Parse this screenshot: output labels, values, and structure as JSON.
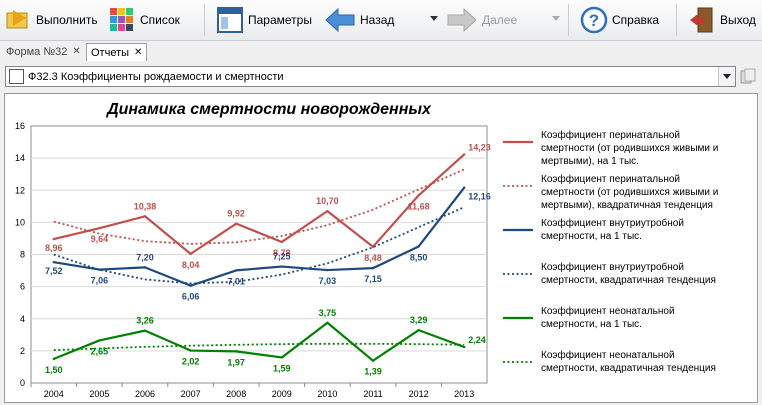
{
  "toolbar": {
    "run_label": "Выполнить",
    "list_label": "Список",
    "params_label": "Параметры",
    "back_label": "Назад",
    "next_label": "Далее",
    "help_label": "Справка",
    "exit_label": "Выход"
  },
  "tabs": [
    {
      "label": "Форма №32",
      "active": false
    },
    {
      "label": "Отчеты",
      "active": true
    }
  ],
  "report_selector": {
    "value": "Ф32.3 Коэффициенты рождаемости и смертности"
  },
  "chart_data": {
    "type": "line",
    "title": "Динамика смертности новорожденных",
    "categories": [
      "2004",
      "2005",
      "2006",
      "2007",
      "2008",
      "2009",
      "2010",
      "2011",
      "2012",
      "2013"
    ],
    "ylim": [
      0,
      16
    ],
    "yticks": [
      "0",
      "2",
      "4",
      "6",
      "8",
      "10",
      "12",
      "14",
      "16"
    ],
    "grid": true,
    "legend_position": "right",
    "series": [
      {
        "name": "Коэффициент  перинатальной смертности (от родившихся живыми и мертвыми), на 1 тыс.",
        "color": "#c0504d",
        "style": "solid",
        "values": [
          8.96,
          9.64,
          10.38,
          8.04,
          9.92,
          8.78,
          10.7,
          8.48,
          11.68,
          14.23
        ],
        "labels": [
          "8,96",
          "9,64",
          "10,38",
          "8,04",
          "9,92",
          "8,78",
          "10,70",
          "8,48",
          "11,68",
          "14,23"
        ]
      },
      {
        "name": "Коэффициент  перинатальной смертности (от родившихся живыми и мертвыми), квадратичная тенденция",
        "color": "#c0504d",
        "style": "dotted",
        "values": [
          10.05,
          9.3,
          8.83,
          8.66,
          8.76,
          9.15,
          9.83,
          10.79,
          12.05,
          13.3
        ]
      },
      {
        "name": "Коэффициент  внутриутробной смертности, на 1 тыс.",
        "color": "#1f497d",
        "style": "solid",
        "values": [
          7.52,
          7.06,
          7.2,
          6.06,
          7.01,
          7.25,
          7.03,
          7.15,
          8.5,
          12.16
        ],
        "labels": [
          "7,52",
          "7,06",
          "7,20",
          "6,06",
          "7,01",
          "7,25",
          "7,03",
          "7,15",
          "8,50",
          "12,16"
        ]
      },
      {
        "name": "Коэффициент  внутриутробной смертности, квадратичная тенденция",
        "color": "#1f497d",
        "style": "dotted",
        "values": [
          8.0,
          7.05,
          6.45,
          6.2,
          6.3,
          6.75,
          7.45,
          8.45,
          9.7,
          10.95
        ]
      },
      {
        "name": "Коэффициент  неонатальной смертности, на 1 тыс.",
        "color": "#008000",
        "style": "solid",
        "values": [
          1.5,
          2.65,
          3.26,
          2.02,
          1.97,
          1.59,
          3.75,
          1.39,
          3.29,
          2.24
        ],
        "labels": [
          "1,50",
          "2,65",
          "3,26",
          "2,02",
          "1,97",
          "1,59",
          "3,75",
          "1,39",
          "3,29",
          "2,24"
        ]
      },
      {
        "name": "Коэффициент  неонатальной смертности, квадратичная тенденция",
        "color": "#008000",
        "style": "dotted",
        "values": [
          2.05,
          2.15,
          2.25,
          2.32,
          2.38,
          2.42,
          2.44,
          2.44,
          2.42,
          2.38
        ]
      }
    ]
  }
}
